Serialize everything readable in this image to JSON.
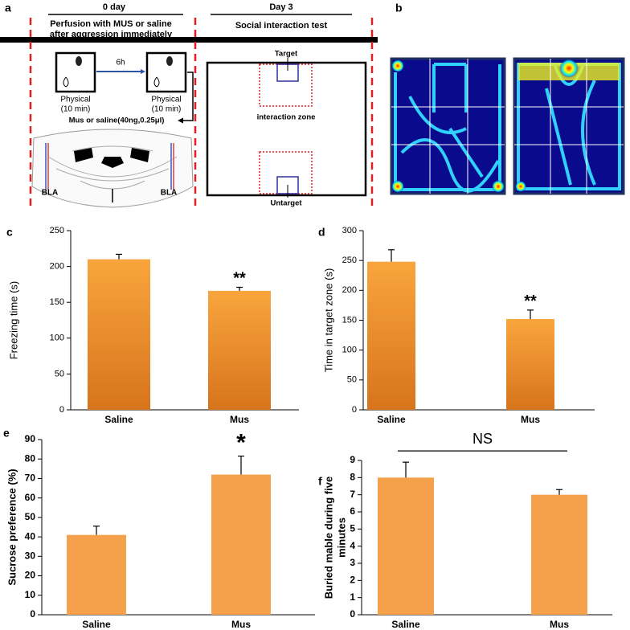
{
  "panel_a": {
    "label": "a",
    "day0": "0 day",
    "day3": "Day 3",
    "perfusion": [
      "Perfusion with MUS or saline",
      "after aggression immediately"
    ],
    "social": "Social interaction test",
    "interval": "6h",
    "boxes": [
      {
        "line1": "Physical",
        "line2": "(10 min)"
      },
      {
        "line1": "Physical",
        "line2": "(10 min)"
      }
    ],
    "injection": "Mus or saline(40ng,0.25μl)",
    "bla": [
      "BLA",
      "BLA"
    ],
    "target": "Target",
    "zone": "interaction zone",
    "untarget": "Untarget"
  },
  "panel_b": {
    "label": "b"
  },
  "chart_data": [
    {
      "type": "bar",
      "label": "c",
      "y_label": "Freezing time (s)",
      "categories": [
        "Saline",
        "Mus"
      ],
      "values": [
        210,
        166
      ],
      "errors": [
        7,
        5
      ],
      "annotation": "**",
      "color": "#f29a35",
      "ylim": [
        0,
        250
      ],
      "yticks": [
        0,
        50,
        100,
        150,
        200,
        250
      ]
    },
    {
      "type": "bar",
      "label": "d",
      "y_label": "Time in target zone (s)",
      "categories": [
        "Saline",
        "Mus"
      ],
      "values": [
        248,
        152
      ],
      "errors": [
        20,
        15
      ],
      "annotation": "**",
      "color": "#f29a35",
      "ylim": [
        0,
        300
      ],
      "yticks": [
        0,
        50,
        100,
        150,
        200,
        250,
        300
      ]
    },
    {
      "type": "bar",
      "label": "e",
      "y_label": "Sucrose preference (%)",
      "categories": [
        "Saline",
        "Mus"
      ],
      "values": [
        41,
        72
      ],
      "errors": [
        4.5,
        9.5
      ],
      "annotation": "*",
      "color": "#f5a04a",
      "ylim": [
        0,
        90
      ],
      "yticks": [
        0,
        10,
        20,
        30,
        40,
        50,
        60,
        70,
        80,
        90
      ]
    },
    {
      "type": "bar",
      "label": "f",
      "y_label": [
        "Buried mable during five",
        "minutes"
      ],
      "categories": [
        "Saline",
        "Mus"
      ],
      "values": [
        8,
        7
      ],
      "errors": [
        0.9,
        0.3
      ],
      "annotation": "NS",
      "color": "#f5a04a",
      "ylim": [
        0,
        9
      ],
      "yticks": [
        0,
        1,
        2,
        3,
        4,
        5,
        6,
        7,
        8,
        9
      ]
    }
  ]
}
